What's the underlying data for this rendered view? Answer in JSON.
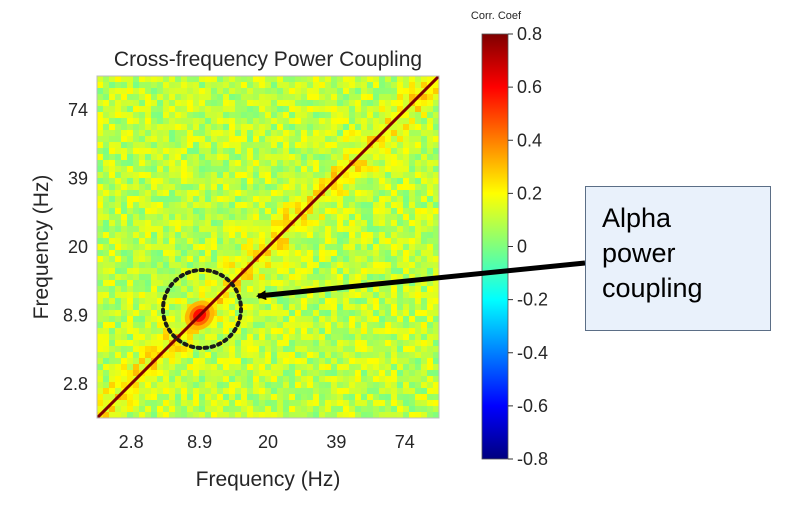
{
  "chart_data": {
    "type": "heatmap",
    "title": "Cross-frequency Power Coupling",
    "xlabel": "Frequency (Hz)",
    "ylabel": "Frequency (Hz)",
    "x_ticks": [
      "2.8",
      "8.9",
      "20",
      "39",
      "74"
    ],
    "y_ticks": [
      "2.8",
      "8.9",
      "20",
      "39",
      "74"
    ],
    "colorbar": {
      "label": "Corr. Coef",
      "range": [
        -0.8,
        0.8
      ],
      "ticks": [
        "0.8",
        "0.6",
        "0.4",
        "0.2",
        "0",
        "-0.2",
        "-0.4",
        "-0.6",
        "-0.8"
      ],
      "tick_values": [
        0.8,
        0.6,
        0.4,
        0.2,
        0,
        -0.2,
        -0.4,
        -0.6,
        -0.8
      ]
    },
    "pattern": {
      "diagonal_value": 0.8,
      "background_value": 0.1,
      "alpha_peak_frequency": "8.9",
      "alpha_peak_value": 0.6
    },
    "colors": {
      "colormap": [
        "#00007f",
        "#0000ff",
        "#007fff",
        "#00ffff",
        "#7fff7f",
        "#ffff00",
        "#ff7f00",
        "#ff0000",
        "#7f0000"
      ]
    }
  },
  "annotation": {
    "lines": [
      "Alpha",
      "power",
      "coupling"
    ]
  }
}
